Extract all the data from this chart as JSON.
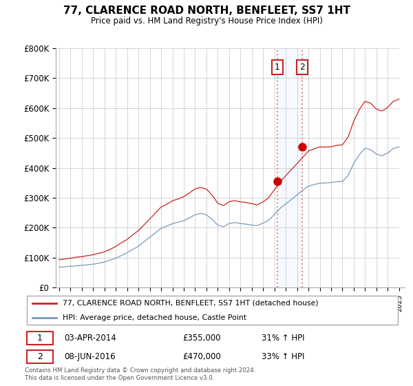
{
  "title": "77, CLARENCE ROAD NORTH, BENFLEET, SS7 1HT",
  "subtitle": "Price paid vs. HM Land Registry's House Price Index (HPI)",
  "ylim": [
    0,
    800000
  ],
  "yticks": [
    0,
    100000,
    200000,
    300000,
    400000,
    500000,
    600000,
    700000,
    800000
  ],
  "ytick_labels": [
    "£0",
    "£100K",
    "£200K",
    "£300K",
    "£400K",
    "£500K",
    "£600K",
    "£700K",
    "£800K"
  ],
  "hpi_color": "#7799bb",
  "price_color": "#cc2222",
  "marker_color": "#cc0000",
  "shade_color": "#ddeeff",
  "vline_color": "#ee8888",
  "legend_label_red": "77, CLARENCE ROAD NORTH, BENFLEET, SS7 1HT (detached house)",
  "legend_label_blue": "HPI: Average price, detached house, Castle Point",
  "transaction1_date": "03-APR-2014",
  "transaction1_price": "£355,000",
  "transaction1_hpi": "31% ↑ HPI",
  "transaction2_date": "08-JUN-2016",
  "transaction2_price": "£470,000",
  "transaction2_hpi": "33% ↑ HPI",
  "footer": "Contains HM Land Registry data © Crown copyright and database right 2024.\nThis data is licensed under the Open Government Licence v3.0.",
  "t1_x": 2014.25,
  "t1_y": 355000,
  "t2_x": 2016.45,
  "t2_y": 470000,
  "xmin": 1995,
  "xmax": 2025
}
